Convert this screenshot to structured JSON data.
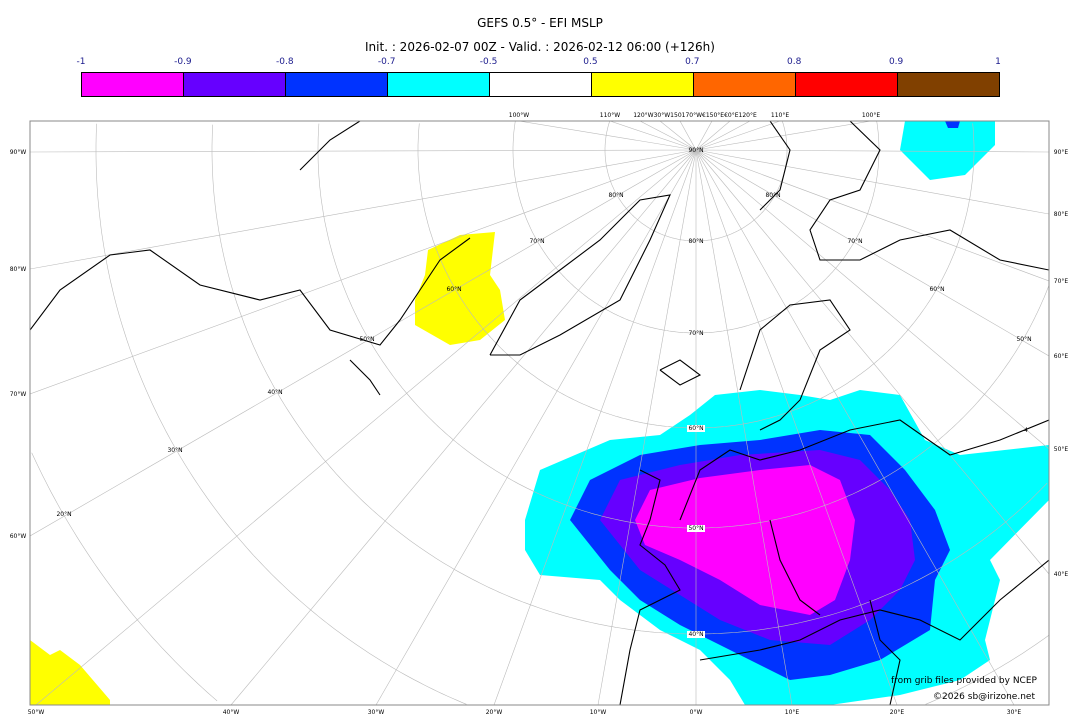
{
  "title": "GEFS 0.5° - EFI MSLP",
  "subtitle": "Init. : 2026-02-07 00Z - Valid. : 2026-02-12 06:00 (+126h)",
  "colorbar": {
    "ticks": [
      "-1",
      "-0.9",
      "-0.8",
      "-0.7",
      "-0.5",
      "0.5",
      "0.7",
      "0.8",
      "0.9",
      "1"
    ],
    "colors": [
      "#ff00ff",
      "#6600ff",
      "#0033ff",
      "#00ffff",
      "#ffffff",
      "#ffff00",
      "#ff6600",
      "#ff0000",
      "#804000"
    ]
  },
  "map": {
    "left_labels": [
      "90°W",
      "80°W",
      "70°W",
      "60°W"
    ],
    "right_labels": [
      "90°E",
      "80°E",
      "70°E",
      "60°E",
      "50°E",
      "40°E"
    ],
    "bottom_labels": [
      "50°W",
      "40°W",
      "30°W",
      "20°W",
      "10°W",
      "0°W",
      "10°E",
      "20°E",
      "30°E"
    ],
    "top_labels": [
      "100°W",
      "110°W",
      "120°W30°W150170°W€150°E€0°E120°E",
      "110°E",
      "100°E"
    ],
    "lat_labels": [
      "90°N",
      "80°N",
      "80°N",
      "70°N",
      "80°N",
      "70°N",
      "60°N",
      "60°N",
      "50°N",
      "70°N",
      "50°N",
      "40°N",
      "60°N",
      "30°N",
      "20°N",
      "50°N",
      "40°N",
      "4"
    ]
  },
  "credits": {
    "source": "from grib files provided by NCEP",
    "copyright": "©2026 sb@irizone.net"
  }
}
